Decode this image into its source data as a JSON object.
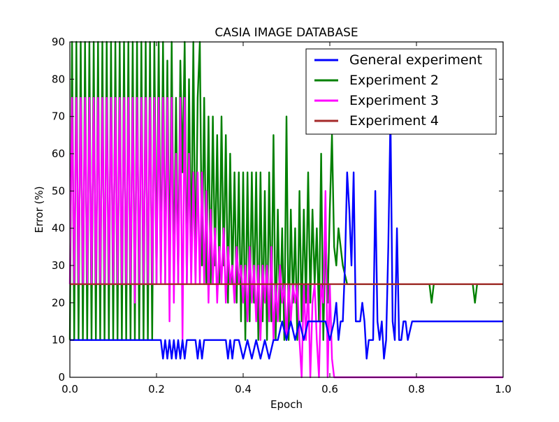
{
  "chart_data": {
    "type": "line",
    "title": "CASIA IMAGE DATABASE",
    "xlabel": "Epoch",
    "ylabel": "Error (%)",
    "xlim": [
      0.0,
      1.0
    ],
    "ylim": [
      0,
      90
    ],
    "xticks": [
      "0.0",
      "0.2",
      "0.4",
      "0.6",
      "0.8",
      "1.0"
    ],
    "yticks": [
      "0",
      "10",
      "20",
      "30",
      "40",
      "50",
      "60",
      "70",
      "80",
      "90"
    ],
    "grid": false,
    "legend_position": "top-right",
    "series": [
      {
        "name": "Experiment 2",
        "color": "#008000",
        "x": [
          0.0,
          0.005,
          0.01,
          0.015,
          0.02,
          0.025,
          0.03,
          0.035,
          0.04,
          0.045,
          0.05,
          0.055,
          0.06,
          0.065,
          0.07,
          0.075,
          0.08,
          0.085,
          0.09,
          0.095,
          0.1,
          0.105,
          0.11,
          0.115,
          0.12,
          0.125,
          0.13,
          0.135,
          0.14,
          0.145,
          0.15,
          0.155,
          0.16,
          0.165,
          0.17,
          0.175,
          0.18,
          0.185,
          0.19,
          0.195,
          0.2,
          0.205,
          0.21,
          0.215,
          0.22,
          0.225,
          0.23,
          0.235,
          0.24,
          0.245,
          0.25,
          0.255,
          0.26,
          0.265,
          0.27,
          0.275,
          0.28,
          0.285,
          0.29,
          0.295,
          0.3,
          0.305,
          0.31,
          0.315,
          0.32,
          0.325,
          0.33,
          0.335,
          0.34,
          0.345,
          0.35,
          0.355,
          0.36,
          0.365,
          0.37,
          0.375,
          0.38,
          0.385,
          0.39,
          0.395,
          0.4,
          0.405,
          0.41,
          0.415,
          0.42,
          0.425,
          0.43,
          0.435,
          0.44,
          0.445,
          0.45,
          0.455,
          0.46,
          0.465,
          0.47,
          0.475,
          0.48,
          0.485,
          0.49,
          0.495,
          0.5,
          0.505,
          0.51,
          0.515,
          0.52,
          0.525,
          0.53,
          0.535,
          0.54,
          0.545,
          0.55,
          0.555,
          0.56,
          0.565,
          0.57,
          0.575,
          0.58,
          0.585,
          0.59,
          0.595,
          0.6,
          0.605,
          0.61,
          0.615,
          0.62,
          0.625,
          0.63,
          0.64,
          0.65,
          0.66,
          0.68,
          0.7,
          0.75,
          0.8,
          0.83,
          0.835,
          0.84,
          0.85,
          0.9,
          0.93,
          0.935,
          0.94,
          0.95,
          1.0
        ],
        "values": [
          10,
          90,
          10,
          90,
          10,
          90,
          10,
          90,
          10,
          90,
          10,
          90,
          10,
          90,
          10,
          90,
          10,
          90,
          10,
          90,
          10,
          90,
          10,
          90,
          10,
          90,
          10,
          90,
          10,
          90,
          10,
          90,
          10,
          90,
          10,
          90,
          10,
          90,
          10,
          90,
          25,
          90,
          25,
          90,
          25,
          85,
          25,
          90,
          25,
          75,
          25,
          85,
          55,
          90,
          25,
          80,
          30,
          90,
          25,
          75,
          90,
          30,
          75,
          25,
          70,
          25,
          70,
          30,
          65,
          25,
          70,
          30,
          65,
          20,
          60,
          25,
          55,
          20,
          55,
          15,
          55,
          10,
          55,
          15,
          55,
          20,
          55,
          10,
          55,
          15,
          50,
          10,
          55,
          15,
          65,
          10,
          45,
          15,
          40,
          10,
          70,
          10,
          45,
          20,
          40,
          10,
          50,
          15,
          45,
          20,
          55,
          20,
          45,
          25,
          40,
          15,
          60,
          10,
          40,
          20,
          45,
          65,
          35,
          30,
          40,
          35,
          30,
          25,
          25,
          25,
          25,
          25,
          25,
          25,
          25,
          20,
          25,
          25,
          25,
          25,
          20,
          25,
          25,
          25
        ]
      },
      {
        "name": "Experiment 3",
        "color": "#ff00ff",
        "x": [
          0.0,
          0.005,
          0.01,
          0.015,
          0.02,
          0.025,
          0.03,
          0.035,
          0.04,
          0.045,
          0.05,
          0.055,
          0.06,
          0.065,
          0.07,
          0.075,
          0.08,
          0.085,
          0.09,
          0.095,
          0.1,
          0.105,
          0.11,
          0.115,
          0.12,
          0.125,
          0.13,
          0.135,
          0.14,
          0.145,
          0.15,
          0.155,
          0.16,
          0.165,
          0.17,
          0.175,
          0.18,
          0.185,
          0.19,
          0.195,
          0.2,
          0.205,
          0.21,
          0.215,
          0.22,
          0.225,
          0.23,
          0.235,
          0.24,
          0.245,
          0.25,
          0.255,
          0.26,
          0.265,
          0.27,
          0.275,
          0.28,
          0.285,
          0.29,
          0.295,
          0.3,
          0.305,
          0.31,
          0.315,
          0.32,
          0.325,
          0.33,
          0.335,
          0.34,
          0.345,
          0.35,
          0.355,
          0.36,
          0.365,
          0.37,
          0.375,
          0.38,
          0.385,
          0.39,
          0.395,
          0.4,
          0.405,
          0.41,
          0.415,
          0.42,
          0.425,
          0.43,
          0.435,
          0.44,
          0.445,
          0.45,
          0.455,
          0.46,
          0.465,
          0.47,
          0.475,
          0.48,
          0.485,
          0.49,
          0.495,
          0.5,
          0.505,
          0.51,
          0.515,
          0.52,
          0.525,
          0.53,
          0.535,
          0.54,
          0.545,
          0.55,
          0.555,
          0.56,
          0.565,
          0.57,
          0.575,
          0.58,
          0.585,
          0.59,
          0.595,
          0.6,
          0.605,
          0.61,
          0.7,
          0.8,
          0.9,
          1.0
        ],
        "values": [
          25,
          75,
          25,
          75,
          25,
          75,
          25,
          75,
          25,
          75,
          25,
          75,
          25,
          75,
          25,
          75,
          25,
          75,
          25,
          75,
          25,
          75,
          25,
          75,
          25,
          75,
          25,
          75,
          25,
          75,
          20,
          75,
          25,
          75,
          25,
          75,
          25,
          75,
          25,
          75,
          25,
          75,
          25,
          75,
          25,
          75,
          15,
          75,
          20,
          60,
          25,
          75,
          10,
          75,
          25,
          60,
          25,
          55,
          25,
          55,
          25,
          55,
          25,
          50,
          20,
          45,
          25,
          40,
          20,
          35,
          25,
          40,
          20,
          35,
          25,
          30,
          20,
          35,
          25,
          30,
          20,
          30,
          15,
          35,
          20,
          30,
          15,
          30,
          10,
          30,
          20,
          30,
          15,
          35,
          10,
          25,
          15,
          30,
          20,
          25,
          10,
          25,
          15,
          25,
          20,
          25,
          10,
          0,
          25,
          10,
          25,
          0,
          20,
          25,
          10,
          0,
          25,
          20,
          50,
          0,
          25,
          5,
          0,
          0,
          0,
          0,
          0
        ]
      },
      {
        "name": "General experiment",
        "color": "#0000ff",
        "x": [
          0.0,
          0.1,
          0.2,
          0.205,
          0.21,
          0.215,
          0.22,
          0.225,
          0.23,
          0.235,
          0.24,
          0.245,
          0.25,
          0.255,
          0.26,
          0.265,
          0.27,
          0.28,
          0.29,
          0.295,
          0.3,
          0.305,
          0.31,
          0.32,
          0.33,
          0.34,
          0.35,
          0.36,
          0.365,
          0.37,
          0.375,
          0.38,
          0.39,
          0.4,
          0.41,
          0.42,
          0.43,
          0.44,
          0.45,
          0.46,
          0.47,
          0.48,
          0.49,
          0.5,
          0.51,
          0.52,
          0.53,
          0.54,
          0.55,
          0.56,
          0.57,
          0.58,
          0.59,
          0.6,
          0.61,
          0.615,
          0.62,
          0.625,
          0.63,
          0.635,
          0.64,
          0.645,
          0.65,
          0.655,
          0.66,
          0.67,
          0.675,
          0.68,
          0.685,
          0.69,
          0.695,
          0.7,
          0.705,
          0.71,
          0.715,
          0.72,
          0.725,
          0.73,
          0.735,
          0.74,
          0.745,
          0.75,
          0.755,
          0.76,
          0.765,
          0.77,
          0.775,
          0.78,
          0.79,
          0.8,
          0.85,
          0.9,
          1.0
        ],
        "values": [
          10,
          10,
          10,
          10,
          10,
          5,
          10,
          5,
          10,
          5,
          10,
          5,
          10,
          5,
          10,
          5,
          10,
          10,
          10,
          5,
          10,
          5,
          10,
          10,
          10,
          10,
          10,
          10,
          5,
          10,
          5,
          10,
          10,
          5,
          10,
          5,
          10,
          5,
          10,
          5,
          10,
          10,
          15,
          10,
          15,
          10,
          15,
          10,
          15,
          15,
          15,
          15,
          15,
          10,
          15,
          20,
          10,
          15,
          15,
          30,
          55,
          45,
          30,
          55,
          15,
          15,
          20,
          15,
          5,
          10,
          10,
          10,
          50,
          15,
          10,
          15,
          5,
          10,
          35,
          70,
          15,
          10,
          40,
          10,
          10,
          15,
          15,
          10,
          15,
          15,
          15,
          15,
          15
        ]
      },
      {
        "name": "Experiment 4",
        "color": "#a52a2a",
        "x": [
          0.0,
          1.0
        ],
        "values": [
          25,
          25
        ]
      }
    ]
  }
}
